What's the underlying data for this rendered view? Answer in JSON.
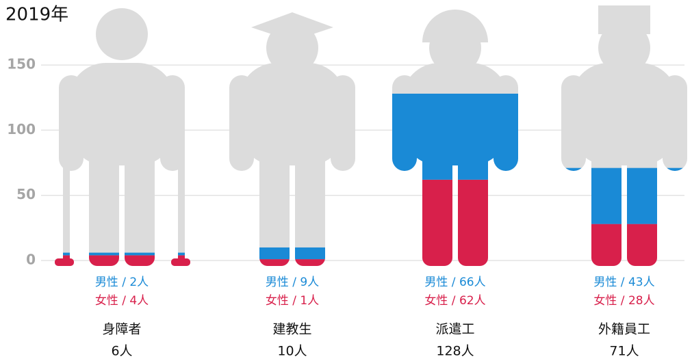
{
  "chart_data": {
    "type": "pictogram-stack",
    "title": "2019年",
    "categories": [
      "身障者",
      "建教生",
      "派遣工",
      "外籍員工"
    ],
    "total_labels": [
      "6人",
      "10人",
      "128人",
      "71人"
    ],
    "series": [
      {
        "name": "女性",
        "color": "#d8204b",
        "values": [
          4,
          1,
          62,
          28
        ],
        "value_labels": [
          "女性 / 4人",
          "女性 / 1人",
          "女性 / 62人",
          "女性 / 28人"
        ]
      },
      {
        "name": "男性",
        "color": "#1a8ad6",
        "values": [
          2,
          9,
          66,
          43
        ],
        "value_labels": [
          "男性 / 2人",
          "男性 / 9人",
          "男性 / 66人",
          "男性 / 43人"
        ]
      }
    ],
    "ylim": [
      0,
      160
    ],
    "yticks": [
      0,
      50,
      100,
      150
    ],
    "grid": true
  }
}
